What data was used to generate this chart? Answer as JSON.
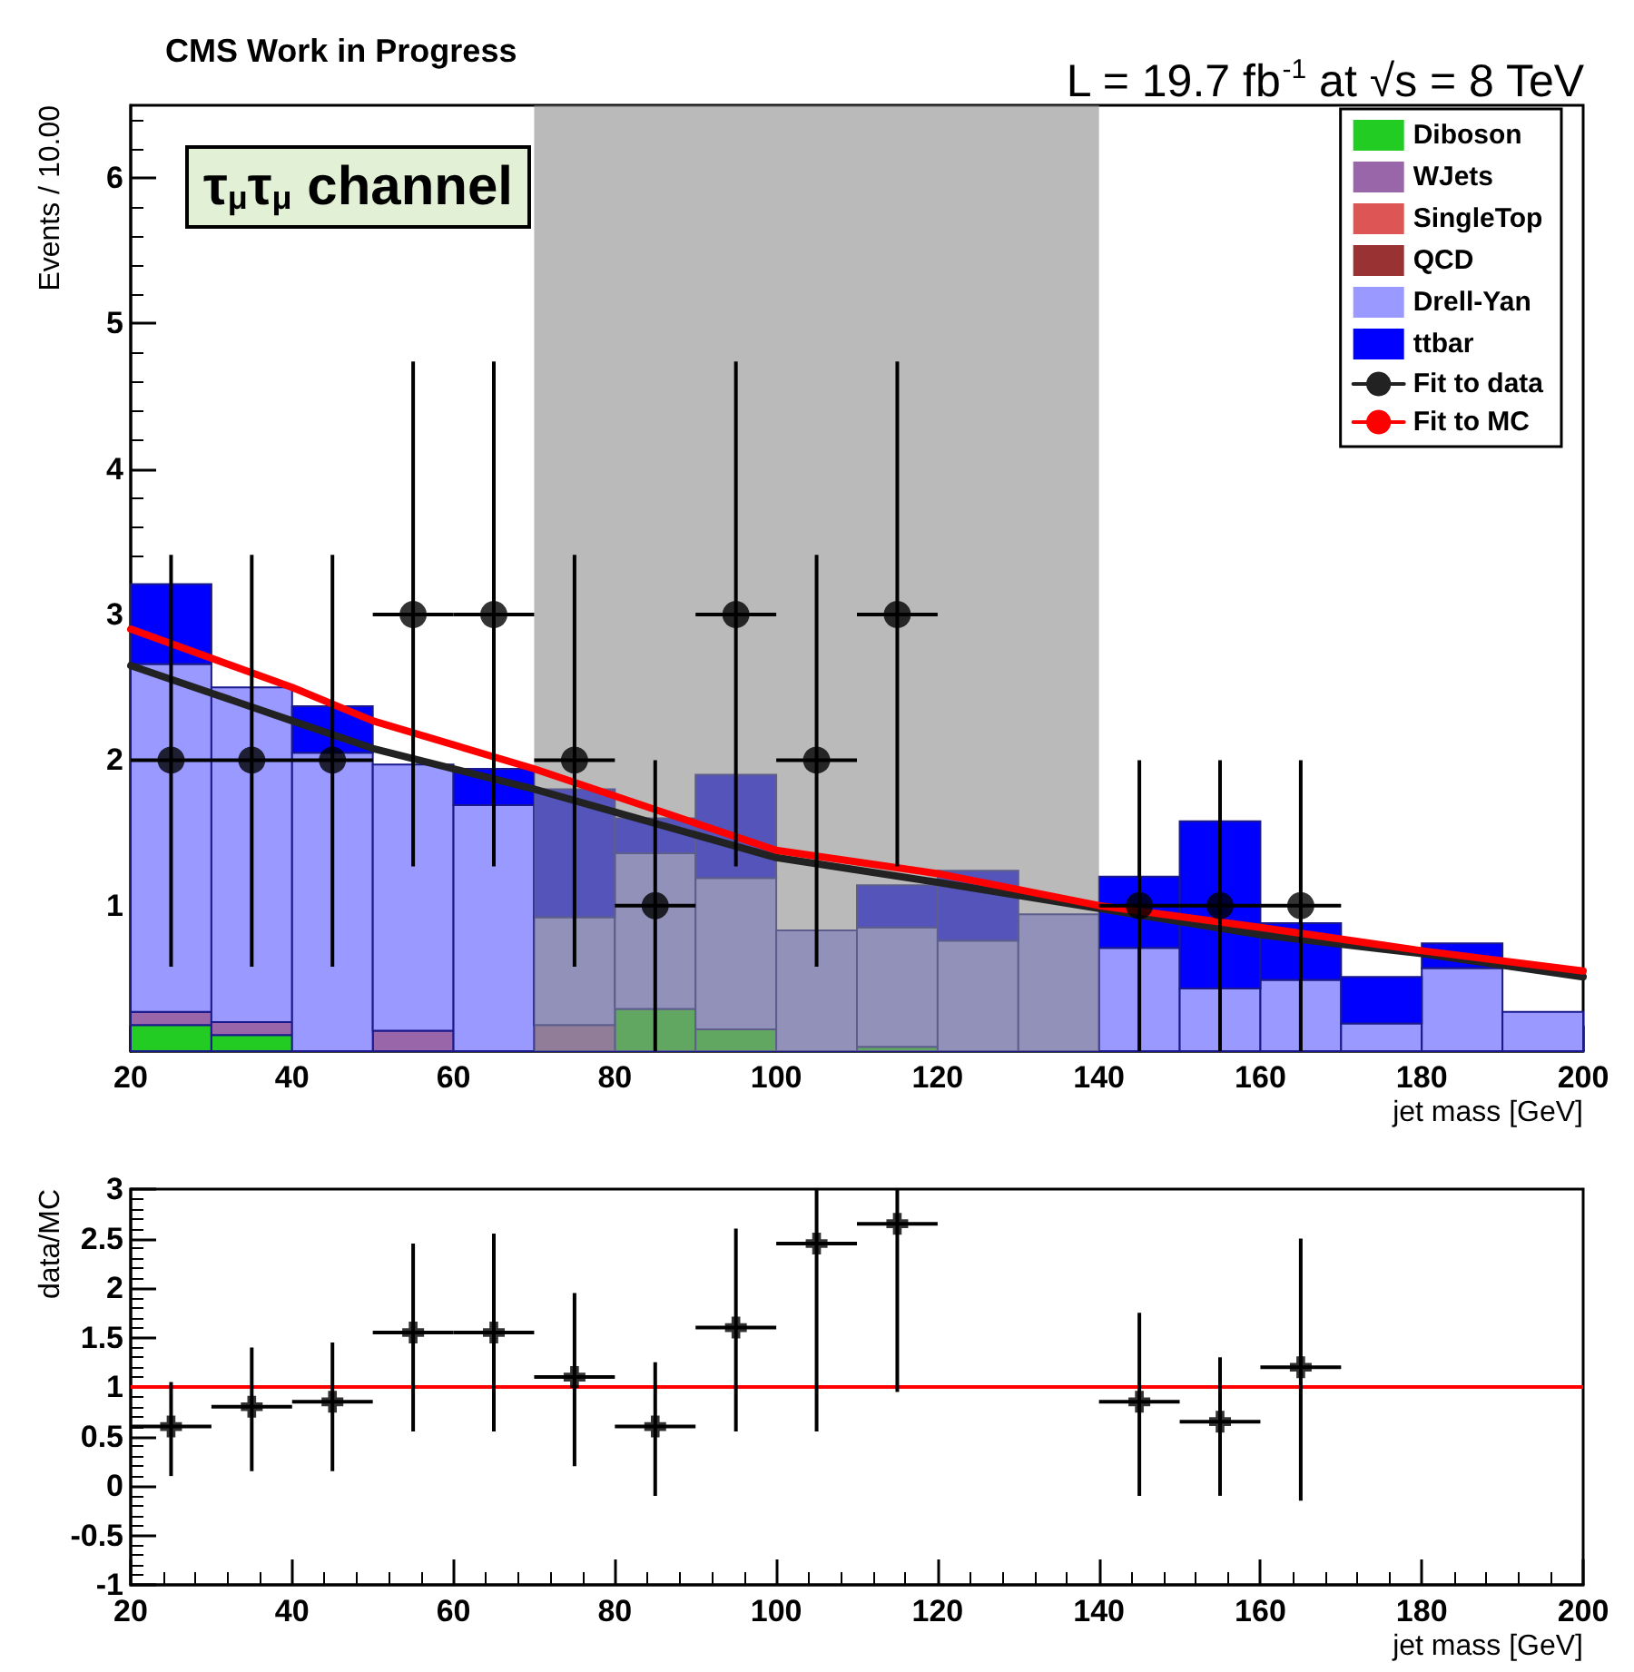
{
  "chart_data": [
    {
      "type": "bar",
      "title": "CMS Work in Progress",
      "subtitle": "L = 19.7 fb$^{-1}$ at √s = 8 TeV",
      "xlabel": "jet mass [GeV]",
      "ylabel": "Events / 10.00",
      "annotations": [
        "τ$_{μ}$τ$_{μ}$ channel"
      ],
      "x": [
        25,
        35,
        45,
        55,
        65,
        75,
        85,
        95,
        105,
        115,
        125,
        135,
        145,
        155,
        165,
        175,
        185,
        195
      ],
      "stacked": true,
      "series": [
        {
          "name": "Diboson",
          "color": "#22cc22",
          "values": [
            0.18,
            0.11,
            null,
            null,
            null,
            null,
            0.29,
            0.15,
            null,
            0.03,
            null,
            null,
            null,
            null,
            null,
            null,
            null,
            null
          ]
        },
        {
          "name": "WJets",
          "color": "#9966aa",
          "values": [
            0.09,
            0.09,
            null,
            0.14,
            null,
            0.18,
            null,
            null,
            null,
            null,
            null,
            null,
            null,
            null,
            null,
            null,
            null,
            null
          ]
        },
        {
          "name": "SingleTop",
          "color": "#dd5555",
          "values": [
            null,
            null,
            null,
            null,
            null,
            null,
            null,
            null,
            null,
            null,
            null,
            null,
            null,
            null,
            null,
            null,
            null,
            null
          ]
        },
        {
          "name": "QCD",
          "color": "#993333",
          "values": [
            null,
            null,
            null,
            null,
            null,
            null,
            null,
            null,
            null,
            null,
            null,
            null,
            null,
            null,
            null,
            null,
            null,
            null
          ]
        },
        {
          "name": "Drell-Yan",
          "color": "#9999ff",
          "values": [
            2.39,
            2.3,
            2.05,
            1.83,
            1.69,
            0.74,
            1.07,
            1.04,
            0.83,
            0.82,
            0.76,
            0.94,
            0.71,
            0.43,
            0.49,
            0.19,
            0.57,
            0.27
          ]
        },
        {
          "name": "ttbar",
          "color": "#0000ff",
          "values": [
            0.55,
            null,
            0.32,
            null,
            0.25,
            0.88,
            0.24,
            0.71,
            null,
            0.29,
            0.48,
            null,
            0.49,
            1.15,
            0.39,
            0.32,
            0.17,
            null
          ]
        },
        {
          "type": "scatter",
          "color": "#000000",
          "marker": "circle",
          "x": [
            25,
            35,
            45,
            55,
            65,
            75,
            85,
            95,
            105,
            115,
            145,
            155,
            165
          ],
          "values": [
            2,
            2,
            2,
            3,
            3,
            2,
            1,
            3,
            2,
            3,
            1,
            1,
            1
          ],
          "errors": [
            [
              0.58,
              3.41
            ],
            [
              0.58,
              3.41
            ],
            [
              0.58,
              3.41
            ],
            [
              1.27,
              4.74
            ],
            [
              1.27,
              4.74
            ],
            [
              0.58,
              3.41
            ],
            [
              0,
              2
            ],
            [
              1.27,
              4.74
            ],
            [
              0.58,
              3.41
            ],
            [
              1.27,
              4.74
            ],
            [
              0,
              2
            ],
            [
              0,
              2
            ],
            [
              0,
              2
            ]
          ],
          "xerrors": [
            5,
            5,
            5,
            5,
            5,
            5,
            5,
            5,
            5,
            5,
            5,
            5,
            5
          ]
        },
        {
          "type": "line",
          "name": "Fit to data",
          "color": "#222222",
          "x": [
            20,
            40,
            50,
            70,
            100,
            120,
            140,
            160,
            180,
            200
          ],
          "values": [
            2.65,
            2.27,
            2.08,
            1.8,
            1.33,
            1.16,
            0.98,
            0.8,
            0.67,
            0.51
          ]
        },
        {
          "type": "line",
          "name": "Fit to MC",
          "color": "#ff0000",
          "x": [
            20,
            40,
            50,
            70,
            100,
            120,
            140,
            160,
            180,
            200
          ],
          "values": [
            2.9,
            2.5,
            2.27,
            1.94,
            1.38,
            1.22,
            1.0,
            0.85,
            0.69,
            0.55
          ]
        }
      ],
      "bands": [
        {
          "axis": "x",
          "from": 70,
          "to": 140,
          "color": "#8c8c8c"
        }
      ],
      "xlim": [
        20,
        200
      ],
      "xticks": [
        20,
        40,
        60,
        80,
        100,
        120,
        140,
        160,
        180,
        200
      ],
      "ylim": [
        0,
        6.5
      ],
      "yticks": [
        1,
        2,
        3,
        4,
        5,
        6
      ],
      "legend": "top right",
      "marker": "none",
      "line_style": "solid"
    },
    {
      "type": "scatter",
      "xlabel": "jet mass [GeV]",
      "ylabel": "data/MC",
      "x": [
        25,
        35,
        45,
        55,
        65,
        75,
        85,
        95,
        105,
        115,
        145,
        155,
        165
      ],
      "values": [
        0.6,
        0.8,
        0.85,
        1.55,
        1.55,
        1.1,
        0.6,
        1.6,
        2.45,
        2.65,
        0.85,
        0.65,
        1.2
      ],
      "errors": [
        [
          0.1,
          1.05
        ],
        [
          0.15,
          1.4
        ],
        [
          0.15,
          1.45
        ],
        [
          0.55,
          2.45
        ],
        [
          0.55,
          2.55
        ],
        [
          0.2,
          1.95
        ],
        [
          -0.1,
          1.25
        ],
        [
          0.55,
          2.6
        ],
        [
          0.55,
          3
        ],
        [
          0.95,
          3
        ],
        [
          -0.1,
          1.75
        ],
        [
          -0.1,
          1.3
        ],
        [
          -0.15,
          2.5
        ]
      ],
      "xerrors": [
        5,
        5,
        5,
        5,
        5,
        5,
        5,
        5,
        5,
        5,
        5,
        5,
        5
      ],
      "color": "#000000",
      "marker": "cross",
      "ref_lines": [
        {
          "axis": "y",
          "value": 1,
          "color": "#ff0000"
        }
      ],
      "xlim": [
        20,
        200
      ],
      "xticks": [
        20,
        40,
        60,
        80,
        100,
        120,
        140,
        160,
        180,
        200
      ],
      "ylim": [
        -1,
        3
      ],
      "yticks": [
        -1,
        -0.5,
        0,
        0.5,
        1,
        1.5,
        2,
        2.5,
        3
      ]
    }
  ]
}
